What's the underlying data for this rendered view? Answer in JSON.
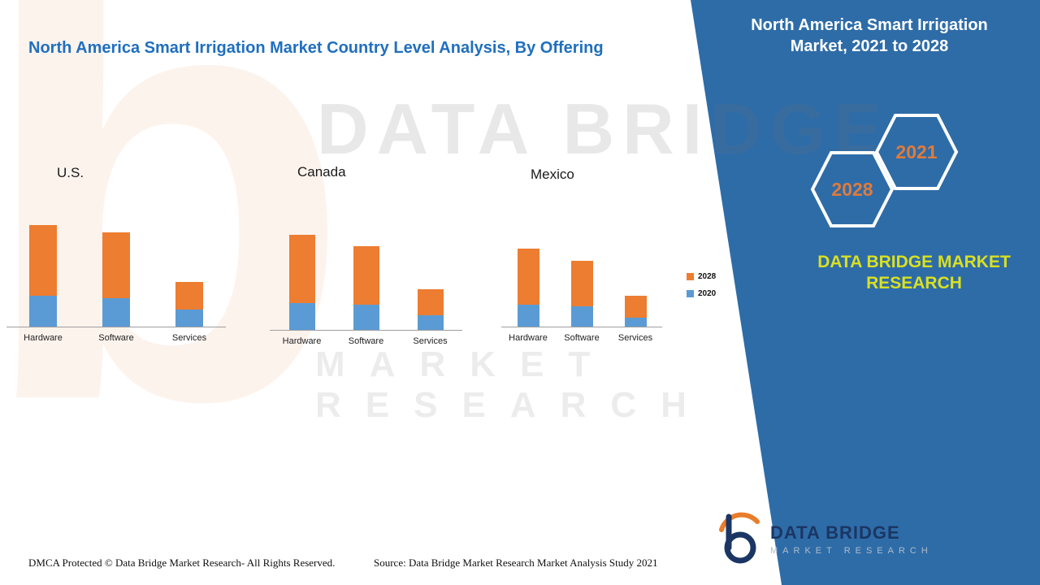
{
  "page": {
    "title": "North America Smart Irrigation Market Country Level Analysis, By Offering"
  },
  "side_panel": {
    "heading": "North America Smart Irrigation Market, 2021 to 2028",
    "hexagon_years": [
      "2028",
      "2021"
    ],
    "brand_text": "DATA BRIDGE MARKET RESEARCH",
    "panel_color": "#2E6CA8",
    "year_color": "#E07B3A",
    "brand_color": "#D9E021"
  },
  "legend": {
    "items": [
      {
        "label": "2028",
        "color": "#ED7D31"
      },
      {
        "label": "2020",
        "color": "#5B9BD5"
      }
    ]
  },
  "watermark": {
    "line1": "DATA BRIDGE",
    "line2": "MARKET RESEARCH",
    "letter": "b"
  },
  "logo": {
    "name": "DATA BRIDGE",
    "subtitle": "MARKET RESEARCH"
  },
  "footer": {
    "dmca": "DMCA Protected © Data Bridge Market Research- All Rights Reserved.",
    "source": "Source: Data Bridge Market Research Market Analysis Study 2021"
  },
  "chart_data": [
    {
      "type": "bar",
      "stacked": true,
      "title": "U.S.",
      "categories": [
        "Hardware",
        "Software",
        "Services"
      ],
      "series": [
        {
          "name": "2020",
          "color": "#5B9BD5",
          "values": [
            38,
            35,
            21
          ]
        },
        {
          "name": "2028",
          "color": "#ED7D31",
          "values": [
            87,
            81,
            34
          ]
        }
      ],
      "xlabel": "",
      "ylabel": "",
      "y_axis_labels_visible": false,
      "grid": false,
      "legend_position": "shared-right"
    },
    {
      "type": "bar",
      "stacked": true,
      "title": "Canada",
      "categories": [
        "Hardware",
        "Software",
        "Services"
      ],
      "series": [
        {
          "name": "2020",
          "color": "#5B9BD5",
          "values": [
            33,
            31,
            18
          ]
        },
        {
          "name": "2028",
          "color": "#ED7D31",
          "values": [
            84,
            72,
            32
          ]
        }
      ],
      "xlabel": "",
      "ylabel": "",
      "y_axis_labels_visible": false,
      "grid": false,
      "legend_position": "shared-right"
    },
    {
      "type": "bar",
      "stacked": true,
      "title": "Mexico",
      "categories": [
        "Hardware",
        "Software",
        "Services"
      ],
      "series": [
        {
          "name": "2020",
          "color": "#5B9BD5",
          "values": [
            27,
            25,
            11
          ]
        },
        {
          "name": "2028",
          "color": "#ED7D31",
          "values": [
            69,
            56,
            27
          ]
        }
      ],
      "xlabel": "",
      "ylabel": "",
      "y_axis_labels_visible": false,
      "grid": false,
      "legend_position": "shared-right"
    }
  ]
}
